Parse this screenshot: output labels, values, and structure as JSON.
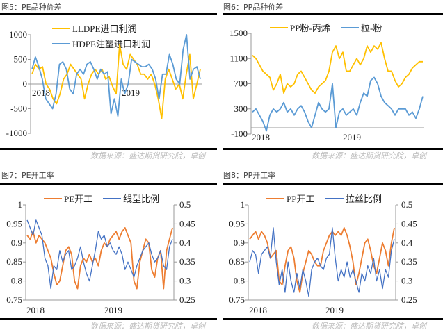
{
  "source": "数据来源：盛达期货研究院，卓创",
  "colors": {
    "yellow": "#FFC000",
    "blue": "#5B9BD5",
    "orange": "#ED7D31",
    "dark_blue": "#4472C4"
  },
  "chart_data": [
    {
      "type": "line",
      "title": "图5：PE品种价差",
      "ylim": [
        -1000,
        1000
      ],
      "yticks": [
        1000,
        500,
        0,
        -500,
        -1000
      ],
      "xticks": [
        "2018",
        "2019"
      ],
      "series": [
        {
          "name": "LLDPE进口利润",
          "color": "#FFC000",
          "values": [
            200,
            400,
            300,
            350,
            0,
            -100,
            -300,
            -400,
            -200,
            100,
            200,
            400,
            300,
            200,
            100,
            -300,
            0,
            200,
            300,
            200,
            300,
            100,
            150,
            -50,
            -200,
            800,
            400,
            300,
            600,
            500,
            400,
            200,
            200,
            100,
            200,
            0,
            -300,
            -700,
            100,
            300,
            100,
            -100,
            0,
            -300,
            200,
            600,
            -300,
            0,
            300
          ]
        },
        {
          "name": "HDPE注塑进口利润",
          "color": "#5B9BD5",
          "values": [
            300,
            550,
            350,
            100,
            -300,
            -400,
            -500,
            -200,
            400,
            450,
            300,
            -100,
            -200,
            200,
            300,
            200,
            400,
            450,
            300,
            100,
            300,
            200,
            250,
            -600,
            -300,
            -650,
            100,
            -200,
            0,
            500,
            450,
            400,
            350,
            350,
            400,
            300,
            100,
            -300,
            200,
            200,
            600,
            400,
            100,
            0,
            700,
            1000,
            100,
            300,
            350,
            100
          ]
        }
      ]
    },
    {
      "type": "line",
      "title": "图6：PP品种价差",
      "ylim": [
        -100,
        1500
      ],
      "yticks": [
        1500,
        1100,
        700,
        300,
        -100
      ],
      "xticks": [
        "2018",
        "2019"
      ],
      "series": [
        {
          "name": "PP粉-丙烯",
          "color": "#FFC000",
          "values": [
            1150,
            1100,
            1000,
            900,
            850,
            800,
            600,
            700,
            850,
            550,
            700,
            650,
            700,
            850,
            900,
            800,
            700,
            600,
            550,
            650,
            700,
            750,
            900,
            1200,
            1300,
            1100,
            1200,
            900,
            900,
            1000,
            1100,
            1000,
            1100,
            1300,
            1200,
            1300,
            1250,
            1350,
            1100,
            900,
            900,
            750,
            650,
            700,
            800,
            850,
            950,
            1000,
            1050,
            1050
          ]
        },
        {
          "name": "粒-粉",
          "color": "#5B9BD5",
          "values": [
            250,
            300,
            200,
            100,
            -50,
            200,
            300,
            250,
            300,
            400,
            250,
            300,
            200,
            300,
            350,
            250,
            100,
            0,
            200,
            400,
            300,
            250,
            300,
            700,
            0,
            250,
            300,
            200,
            250,
            300,
            200,
            400,
            550,
            500,
            750,
            800,
            700,
            500,
            400,
            350,
            300,
            200,
            300,
            300,
            300,
            200,
            250,
            150,
            300,
            500
          ]
        }
      ]
    },
    {
      "type": "line",
      "title": "图7：PE开工率",
      "ylim": [
        0.75,
        1
      ],
      "yticks": [
        "1",
        "0.95",
        "0.9",
        "0.85",
        "0.8",
        "0.75"
      ],
      "y2lim": [
        0.25,
        0.5
      ],
      "y2ticks": [
        "0.5",
        "0.45",
        "0.4",
        "0.35",
        "0.3",
        "0.25"
      ],
      "xticks": [
        "2018",
        "2019"
      ],
      "series": [
        {
          "name": "PE开工",
          "color": "#ED7D31",
          "axis": "left",
          "values": [
            0.92,
            0.91,
            0.93,
            0.9,
            0.92,
            0.91,
            0.9,
            0.88,
            0.86,
            0.82,
            0.79,
            0.8,
            0.84,
            0.88,
            0.89,
            0.87,
            0.8,
            0.78,
            0.84,
            0.86,
            0.85,
            0.87,
            0.85,
            0.86,
            0.84,
            0.88,
            0.9,
            0.89,
            0.91,
            0.92,
            0.93,
            0.91,
            0.93,
            0.94,
            0.92,
            0.9,
            0.8,
            0.78,
            0.85,
            0.88,
            0.91,
            0.9,
            0.83,
            0.81,
            0.86,
            0.88,
            0.78,
            0.88,
            0.91,
            0.94
          ]
        },
        {
          "name": "线型比例",
          "color": "#4472C4",
          "axis": "right",
          "values": [
            0.46,
            0.44,
            0.42,
            0.46,
            0.44,
            0.42,
            0.36,
            0.34,
            0.28,
            0.34,
            0.33,
            0.38,
            0.35,
            0.37,
            0.38,
            0.33,
            0.34,
            0.36,
            0.39,
            0.35,
            0.32,
            0.3,
            0.34,
            0.38,
            0.43,
            0.41,
            0.42,
            0.39,
            0.4,
            0.38,
            0.37,
            0.39,
            0.37,
            0.33,
            0.35,
            0.33,
            0.31,
            0.34,
            0.36,
            0.38,
            0.39,
            0.4,
            0.37,
            0.35,
            0.36,
            0.38,
            0.34,
            0.33,
            0.39,
            0.41
          ]
        }
      ]
    },
    {
      "type": "line",
      "title": "图8：PP开工率",
      "ylim": [
        0.75,
        1
      ],
      "yticks": [
        "1",
        "0.95",
        "0.9",
        "0.85",
        "0.8",
        "0.75"
      ],
      "y2lim": [
        0.25,
        0.5
      ],
      "y2ticks": [
        "0.5",
        "0.45",
        "0.4",
        "0.35",
        "0.3",
        "0.25"
      ],
      "xticks": [
        "2018",
        "2019"
      ],
      "series": [
        {
          "name": "PP开工",
          "color": "#ED7D31",
          "axis": "left",
          "values": [
            0.91,
            0.92,
            0.93,
            0.91,
            0.93,
            0.92,
            0.9,
            0.86,
            0.87,
            0.88,
            0.8,
            0.79,
            0.84,
            0.88,
            0.89,
            0.86,
            0.8,
            0.77,
            0.82,
            0.85,
            0.88,
            0.87,
            0.85,
            0.84,
            0.84,
            0.88,
            0.9,
            0.92,
            0.93,
            0.92,
            0.93,
            0.92,
            0.94,
            0.92,
            0.89,
            0.85,
            0.79,
            0.82,
            0.86,
            0.9,
            0.91,
            0.88,
            0.84,
            0.82,
            0.86,
            0.9,
            0.88,
            0.84,
            0.9,
            0.94
          ]
        },
        {
          "name": "拉丝比例",
          "color": "#4472C4",
          "axis": "right",
          "values": [
            0.35,
            0.38,
            0.37,
            0.32,
            0.37,
            0.38,
            0.39,
            0.36,
            0.44,
            0.35,
            0.29,
            0.33,
            0.27,
            0.35,
            0.3,
            0.27,
            0.32,
            0.28,
            0.33,
            0.3,
            0.26,
            0.33,
            0.35,
            0.36,
            0.34,
            0.33,
            0.36,
            0.37,
            0.44,
            0.36,
            0.3,
            0.33,
            0.31,
            0.35,
            0.31,
            0.33,
            0.3,
            0.27,
            0.32,
            0.3,
            0.34,
            0.32,
            0.36,
            0.3,
            0.33,
            0.28,
            0.33,
            0.31,
            0.38,
            0.41
          ]
        }
      ]
    }
  ]
}
